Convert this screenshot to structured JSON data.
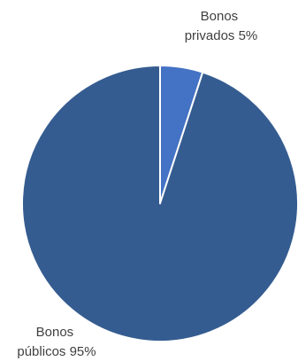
{
  "chart_data": {
    "type": "pie",
    "title": "",
    "slices": [
      {
        "label_line1": "Bonos",
        "label_line2": "privados 5%",
        "value": 5,
        "color": "#4472C4"
      },
      {
        "label_line1": "Bonos",
        "label_line2": "públicos 95%",
        "value": 95,
        "color": "#355C90"
      }
    ],
    "slice_edge_color": "#ffffff",
    "legend": "none"
  }
}
